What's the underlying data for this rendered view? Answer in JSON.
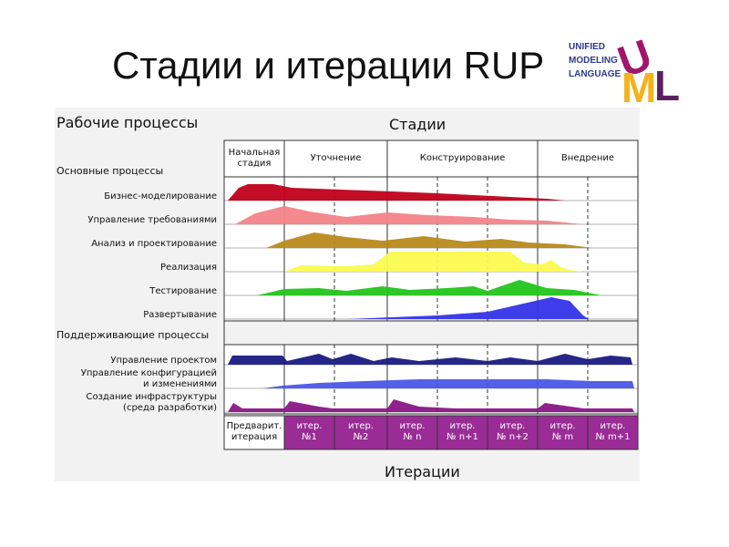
{
  "title": "Стадии и итерации RUP",
  "logo": {
    "lines": [
      "UNIFIED",
      "MODELING",
      "LANGUAGE"
    ],
    "letters": [
      "U",
      "M",
      "L"
    ],
    "colors": {
      "u": "#a0166e",
      "m": "#f6b21c",
      "l": "#5a1f63",
      "text": "#2e3a8c"
    }
  },
  "headings": {
    "workflows": "Рабочие процессы",
    "phases": "Стадии",
    "iterations": "Итерации",
    "core": "Основные процессы",
    "supporting": "Поддерживающие процессы"
  },
  "phases": [
    {
      "label": "Начальная\nстадия"
    },
    {
      "label": "Уточнение"
    },
    {
      "label": "Конструирование"
    },
    {
      "label": "Внедрение"
    }
  ],
  "processes": [
    {
      "label": "Бизнес-моделирование",
      "color": "#c0001a"
    },
    {
      "label": "Управление требованиями",
      "color": "#f4838a"
    },
    {
      "label": "Анализ и проектирование",
      "color": "#b88a1a"
    },
    {
      "label": "Реализация",
      "color": "#fafa50"
    },
    {
      "label": "Тестирование",
      "color": "#22c41a"
    },
    {
      "label": "Развертывание",
      "color": "#3434e8"
    },
    {
      "label": "Управление проектом",
      "color": "#1a1a82"
    },
    {
      "label": "Управление конфигурацией\nи изменениями",
      "color": "#4a58e8"
    },
    {
      "label": "Создание инфраструктуры\n(среда разработки)",
      "color": "#8a1686"
    }
  ],
  "iterations": [
    {
      "label": "Предварит.\nитерация",
      "color": "#ffffff"
    },
    {
      "label": "итер.\n№1",
      "color": "#9a2c96"
    },
    {
      "label": "итер.\n№2",
      "color": "#9a2c96"
    },
    {
      "label": "итер.\n№ n",
      "color": "#9a2c96"
    },
    {
      "label": "итер.\n№ n+1",
      "color": "#9a2c96"
    },
    {
      "label": "итер.\n№ n+2",
      "color": "#9a2c96"
    },
    {
      "label": "итер.\n№ m",
      "color": "#9a2c96"
    },
    {
      "label": "итер.\n№ m+1",
      "color": "#9a2c96"
    }
  ]
}
